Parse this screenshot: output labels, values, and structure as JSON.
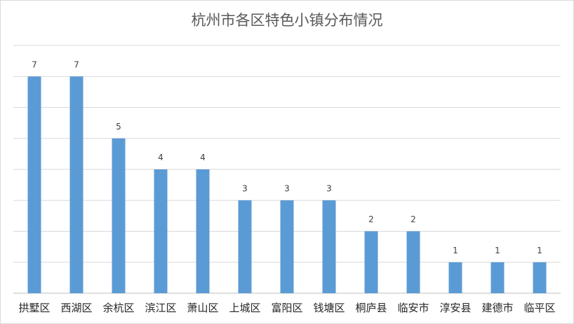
{
  "chart_data": {
    "type": "bar",
    "title": "杭州市各区特色小镇分布情况",
    "categories": [
      "拱墅区",
      "西湖区",
      "余杭区",
      "滨江区",
      "萧山区",
      "上城区",
      "富阳区",
      "钱塘区",
      "桐庐县",
      "临安市",
      "淳安县",
      "建德市",
      "临平区"
    ],
    "values": [
      7,
      7,
      5,
      4,
      4,
      3,
      3,
      3,
      2,
      2,
      1,
      1,
      1
    ],
    "xlabel": "",
    "ylabel": "",
    "ylim": [
      0,
      8
    ],
    "grid": true,
    "legend": "none",
    "bar_color": "#5b9bd5",
    "grid_color": "#d9d9d9"
  }
}
